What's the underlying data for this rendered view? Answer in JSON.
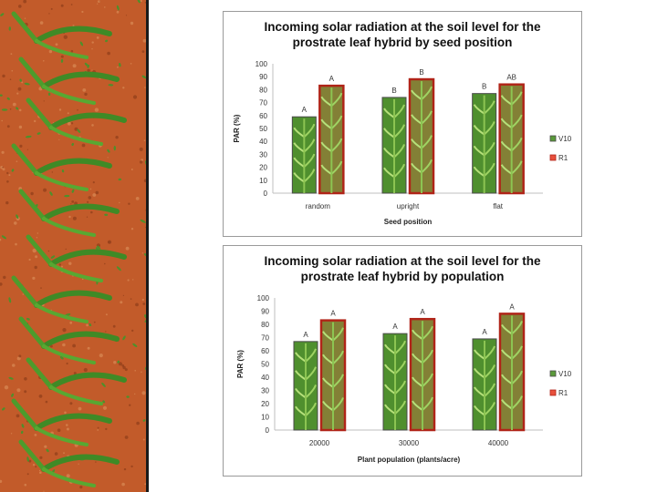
{
  "colors": {
    "v10": "#5a9a3a",
    "r1": "#e8503c",
    "v10_edge": "#4a4a4a",
    "r1_edge": "#b02418",
    "soil": "#c25b2a"
  },
  "chart_data": [
    {
      "type": "bar",
      "title_line1": "Incoming solar radiation at the soil level for the",
      "title_line2": "prostrate leaf hybrid by seed position",
      "xlabel": "Seed position",
      "ylabel": "PAR (%)",
      "ylim": [
        0,
        100
      ],
      "yticks": [
        "0",
        "10",
        "20",
        "30",
        "40",
        "50",
        "60",
        "70",
        "80",
        "90",
        "100"
      ],
      "categories": [
        "random",
        "upright",
        "flat"
      ],
      "series": [
        {
          "name": "V10",
          "values": [
            59,
            74,
            77
          ],
          "letters": [
            "A",
            "B",
            "B"
          ]
        },
        {
          "name": "R1",
          "values": [
            83,
            88,
            84
          ],
          "letters": [
            "A",
            "B",
            "AB"
          ]
        }
      ],
      "legend": [
        "V10",
        "R1"
      ],
      "legend_position": "right"
    },
    {
      "type": "bar",
      "title_line1": "Incoming solar radiation at the soil level for the",
      "title_line2": "prostrate leaf hybrid by population",
      "xlabel": "Plant population (plants/acre)",
      "ylabel": "PAR (%)",
      "ylim": [
        0,
        100
      ],
      "yticks": [
        "0",
        "10",
        "20",
        "30",
        "40",
        "50",
        "60",
        "70",
        "80",
        "90",
        "100"
      ],
      "categories": [
        "20000",
        "30000",
        "40000"
      ],
      "series": [
        {
          "name": "V10",
          "values": [
            67,
            73,
            69
          ],
          "letters": [
            "A",
            "A",
            "A"
          ]
        },
        {
          "name": "R1",
          "values": [
            83,
            84,
            88
          ],
          "letters": [
            "A",
            "A",
            "A"
          ]
        }
      ],
      "legend": [
        "V10",
        "R1"
      ],
      "legend_position": "right"
    }
  ]
}
